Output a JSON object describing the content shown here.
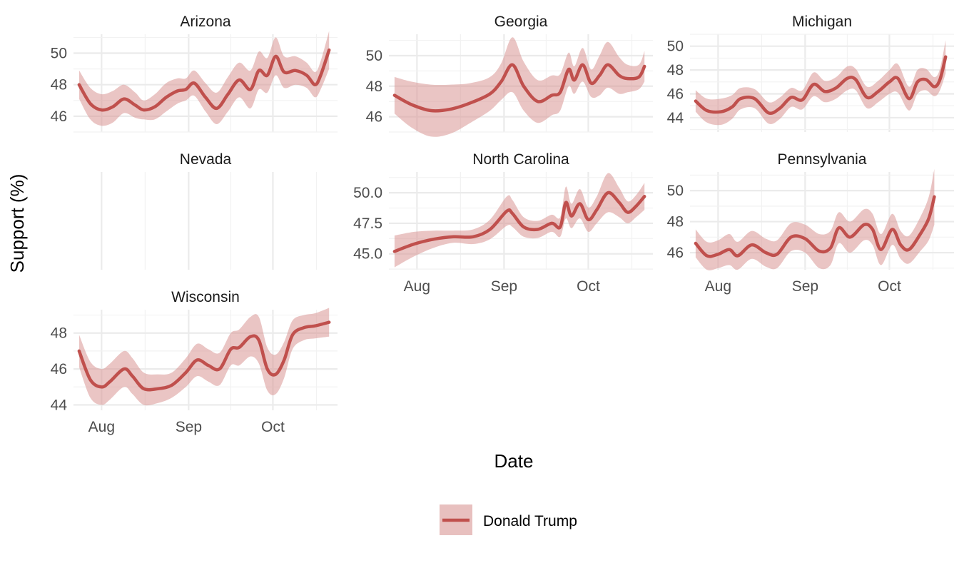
{
  "chart_data": {
    "type": "line",
    "xlabel": "Date",
    "ylabel": "Support (%)",
    "legend": {
      "position": "bottom",
      "entries": [
        "Donald Trump"
      ]
    },
    "series_color": "#c0504d",
    "band_color": "#d99694",
    "grid": true,
    "x_ticks": [
      {
        "label": "Aug",
        "date": "2024-08-01"
      },
      {
        "label": "Sep",
        "date": "2024-09-01"
      },
      {
        "label": "Oct",
        "date": "2024-10-01"
      }
    ],
    "panels": [
      {
        "title": "Arizona",
        "ylim": [
          45,
          51.2
        ],
        "yticks": [
          "46",
          "48",
          "50"
        ],
        "points": [
          [
            "2024-07-24",
            48.0,
            0.9
          ],
          [
            "2024-07-28",
            46.8,
            1.0
          ],
          [
            "2024-08-01",
            46.4,
            1.0
          ],
          [
            "2024-08-05",
            46.6,
            1.0
          ],
          [
            "2024-08-09",
            47.1,
            0.9
          ],
          [
            "2024-08-13",
            46.7,
            0.8
          ],
          [
            "2024-08-16",
            46.4,
            0.6
          ],
          [
            "2024-08-20",
            46.6,
            0.8
          ],
          [
            "2024-08-24",
            47.2,
            0.9
          ],
          [
            "2024-08-28",
            47.6,
            0.8
          ],
          [
            "2024-08-31",
            47.7,
            0.7
          ],
          [
            "2024-09-03",
            48.1,
            0.8
          ],
          [
            "2024-09-07",
            47.2,
            0.9
          ],
          [
            "2024-09-11",
            46.5,
            1.0
          ],
          [
            "2024-09-15",
            47.4,
            1.1
          ],
          [
            "2024-09-19",
            48.3,
            1.1
          ],
          [
            "2024-09-23",
            47.7,
            1.2
          ],
          [
            "2024-09-26",
            48.9,
            1.2
          ],
          [
            "2024-09-29",
            48.6,
            1.1
          ],
          [
            "2024-10-02",
            49.8,
            1.2
          ],
          [
            "2024-10-05",
            48.8,
            1.0
          ],
          [
            "2024-10-09",
            48.9,
            0.9
          ],
          [
            "2024-10-13",
            48.6,
            0.8
          ],
          [
            "2024-10-16",
            48.0,
            0.8
          ],
          [
            "2024-10-18",
            48.6,
            0.9
          ],
          [
            "2024-10-21",
            50.2,
            1.2
          ]
        ]
      },
      {
        "title": "Georgia",
        "ylim": [
          45,
          51.4
        ],
        "yticks": [
          "46",
          "48",
          "50"
        ],
        "points": [
          [
            "2024-07-24",
            47.4,
            1.2
          ],
          [
            "2024-07-30",
            46.8,
            1.5
          ],
          [
            "2024-08-06",
            46.4,
            1.7
          ],
          [
            "2024-08-13",
            46.5,
            1.6
          ],
          [
            "2024-08-20",
            46.9,
            1.3
          ],
          [
            "2024-08-27",
            47.5,
            1.1
          ],
          [
            "2024-08-31",
            48.3,
            1.2
          ],
          [
            "2024-09-04",
            49.4,
            1.8
          ],
          [
            "2024-09-08",
            48.0,
            1.6
          ],
          [
            "2024-09-13",
            47.0,
            1.4
          ],
          [
            "2024-09-18",
            47.4,
            1.3
          ],
          [
            "2024-09-21",
            47.6,
            1.2
          ],
          [
            "2024-09-24",
            49.1,
            1.1
          ],
          [
            "2024-09-26",
            48.4,
            0.9
          ],
          [
            "2024-09-29",
            49.4,
            1.1
          ],
          [
            "2024-10-02",
            48.2,
            0.9
          ],
          [
            "2024-10-05",
            48.7,
            1.3
          ],
          [
            "2024-10-08",
            49.4,
            1.5
          ],
          [
            "2024-10-12",
            48.7,
            1.2
          ],
          [
            "2024-10-15",
            48.5,
            0.9
          ],
          [
            "2024-10-19",
            48.6,
            0.8
          ],
          [
            "2024-10-21",
            49.3,
            1.0
          ]
        ]
      },
      {
        "title": "Michigan",
        "ylim": [
          42.8,
          51
        ],
        "yticks": [
          "44",
          "46",
          "48",
          "50"
        ],
        "points": [
          [
            "2024-07-24",
            45.4,
            0.9
          ],
          [
            "2024-07-28",
            44.6,
            1.0
          ],
          [
            "2024-08-02",
            44.5,
            1.1
          ],
          [
            "2024-08-06",
            44.9,
            1.0
          ],
          [
            "2024-08-09",
            45.6,
            0.9
          ],
          [
            "2024-08-14",
            45.6,
            0.8
          ],
          [
            "2024-08-19",
            44.4,
            0.9
          ],
          [
            "2024-08-23",
            44.8,
            0.9
          ],
          [
            "2024-08-27",
            45.7,
            0.8
          ],
          [
            "2024-08-31",
            45.5,
            0.8
          ],
          [
            "2024-09-04",
            46.8,
            1.0
          ],
          [
            "2024-09-08",
            46.2,
            0.9
          ],
          [
            "2024-09-12",
            46.5,
            0.9
          ],
          [
            "2024-09-16",
            47.3,
            1.0
          ],
          [
            "2024-09-19",
            47.2,
            0.9
          ],
          [
            "2024-09-23",
            45.7,
            0.9
          ],
          [
            "2024-09-27",
            46.2,
            0.9
          ],
          [
            "2024-10-01",
            47.0,
            1.0
          ],
          [
            "2024-10-04",
            47.3,
            1.2
          ],
          [
            "2024-10-08",
            45.6,
            1.0
          ],
          [
            "2024-10-11",
            47.0,
            1.0
          ],
          [
            "2024-10-14",
            47.2,
            0.9
          ],
          [
            "2024-10-17",
            46.6,
            0.8
          ],
          [
            "2024-10-19",
            47.2,
            0.9
          ],
          [
            "2024-10-21",
            49.1,
            1.4
          ]
        ]
      },
      {
        "title": "Nevada",
        "ylim": [
          44,
          50
        ],
        "yticks": [],
        "points": []
      },
      {
        "title": "North Carolina",
        "ylim": [
          43.7,
          51.7
        ],
        "yticks": [
          "45.0",
          "47.5",
          "50.0"
        ],
        "points": [
          [
            "2024-07-24",
            45.2,
            1.3
          ],
          [
            "2024-07-31",
            45.8,
            1.0
          ],
          [
            "2024-08-07",
            46.2,
            0.7
          ],
          [
            "2024-08-14",
            46.4,
            0.5
          ],
          [
            "2024-08-21",
            46.4,
            0.6
          ],
          [
            "2024-08-27",
            47.0,
            0.8
          ],
          [
            "2024-09-02",
            48.5,
            1.2
          ],
          [
            "2024-09-04",
            48.3,
            1.1
          ],
          [
            "2024-09-08",
            47.2,
            0.8
          ],
          [
            "2024-09-13",
            47.0,
            0.7
          ],
          [
            "2024-09-18",
            47.5,
            0.7
          ],
          [
            "2024-09-21",
            47.2,
            0.8
          ],
          [
            "2024-09-23",
            49.2,
            1.3
          ],
          [
            "2024-09-25",
            48.1,
            1.0
          ],
          [
            "2024-09-28",
            49.1,
            1.2
          ],
          [
            "2024-10-01",
            47.8,
            1.0
          ],
          [
            "2024-10-04",
            48.6,
            1.1
          ],
          [
            "2024-10-08",
            50.0,
            1.6
          ],
          [
            "2024-10-12",
            49.2,
            1.2
          ],
          [
            "2024-10-15",
            48.4,
            0.9
          ],
          [
            "2024-10-18",
            48.9,
            0.9
          ],
          [
            "2024-10-21",
            49.7,
            1.1
          ]
        ]
      },
      {
        "title": "Pennsylvania",
        "ylim": [
          44.9,
          51.2
        ],
        "yticks": [
          "46",
          "48",
          "50"
        ],
        "points": [
          [
            "2024-07-24",
            46.6,
            0.9
          ],
          [
            "2024-07-28",
            45.8,
            0.9
          ],
          [
            "2024-08-01",
            45.9,
            0.9
          ],
          [
            "2024-08-05",
            46.2,
            1.0
          ],
          [
            "2024-08-08",
            45.8,
            0.9
          ],
          [
            "2024-08-13",
            46.5,
            0.9
          ],
          [
            "2024-08-18",
            46.0,
            0.9
          ],
          [
            "2024-08-22",
            45.9,
            0.9
          ],
          [
            "2024-08-27",
            47.0,
            0.9
          ],
          [
            "2024-09-01",
            46.9,
            0.9
          ],
          [
            "2024-09-06",
            46.1,
            1.1
          ],
          [
            "2024-09-10",
            46.3,
            1.1
          ],
          [
            "2024-09-13",
            47.6,
            1.0
          ],
          [
            "2024-09-17",
            47.0,
            1.0
          ],
          [
            "2024-09-22",
            47.8,
            1.0
          ],
          [
            "2024-09-25",
            47.5,
            1.0
          ],
          [
            "2024-09-28",
            46.2,
            1.0
          ],
          [
            "2024-10-02",
            47.5,
            1.0
          ],
          [
            "2024-10-05",
            46.5,
            0.9
          ],
          [
            "2024-10-08",
            46.2,
            0.9
          ],
          [
            "2024-10-12",
            47.2,
            1.1
          ],
          [
            "2024-10-15",
            48.2,
            1.4
          ],
          [
            "2024-10-17",
            49.6,
            1.8
          ]
        ]
      },
      {
        "title": "Wisconsin",
        "ylim": [
          43.7,
          49.3
        ],
        "yticks": [
          "44",
          "46",
          "48"
        ],
        "points": [
          [
            "2024-07-24",
            47.0,
            0.9
          ],
          [
            "2024-07-28",
            45.4,
            1.0
          ],
          [
            "2024-08-01",
            45.0,
            1.0
          ],
          [
            "2024-08-04",
            45.3,
            1.0
          ],
          [
            "2024-08-09",
            46.0,
            1.0
          ],
          [
            "2024-08-12",
            45.6,
            1.0
          ],
          [
            "2024-08-16",
            44.9,
            0.9
          ],
          [
            "2024-08-21",
            44.9,
            0.8
          ],
          [
            "2024-08-26",
            45.1,
            0.7
          ],
          [
            "2024-08-31",
            45.8,
            0.8
          ],
          [
            "2024-09-04",
            46.5,
            0.9
          ],
          [
            "2024-09-08",
            46.2,
            0.9
          ],
          [
            "2024-09-12",
            46.0,
            0.9
          ],
          [
            "2024-09-16",
            47.1,
            0.9
          ],
          [
            "2024-09-19",
            47.2,
            1.0
          ],
          [
            "2024-09-23",
            47.8,
            1.1
          ],
          [
            "2024-09-26",
            47.6,
            1.3
          ],
          [
            "2024-09-29",
            46.0,
            1.2
          ],
          [
            "2024-10-02",
            45.7,
            1.1
          ],
          [
            "2024-10-05",
            46.5,
            1.0
          ],
          [
            "2024-10-08",
            47.9,
            0.8
          ],
          [
            "2024-10-12",
            48.3,
            0.7
          ],
          [
            "2024-10-16",
            48.4,
            0.7
          ],
          [
            "2024-10-21",
            48.6,
            0.8
          ]
        ]
      }
    ]
  }
}
